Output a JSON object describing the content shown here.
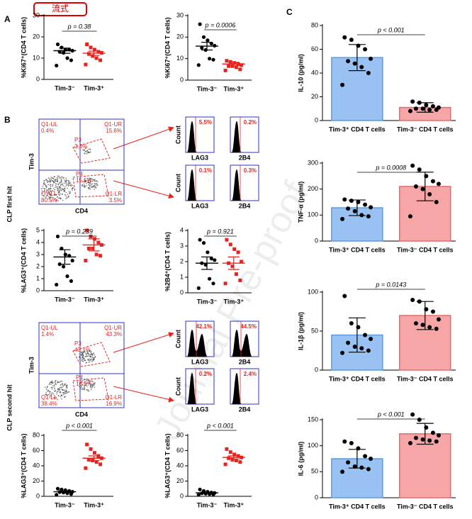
{
  "badge": "流式",
  "panel_labels": [
    "A",
    "B",
    "C"
  ],
  "watermark": "Journal Pre-proof",
  "chart_data": [
    {
      "type": "dot",
      "ylabel": "%Ki67⁺(CD4 T cells)",
      "categories": [
        "Tim-3⁻",
        "Tim-3⁺"
      ],
      "ylim": [
        0,
        30
      ],
      "yticks": [
        0,
        10,
        20,
        30
      ],
      "p": "p = 0.38",
      "groups": [
        {
          "color": "#000000",
          "marker": "circle",
          "values": [
            16.5,
            15,
            14,
            14,
            13.5,
            13,
            12.5,
            10,
            9,
            6.5
          ],
          "mean": 13.5,
          "sem": 1.2
        },
        {
          "color": "#e8231f",
          "marker": "square",
          "values": [
            16.5,
            15,
            14,
            13,
            12.5,
            12,
            11,
            10,
            9,
            7
          ],
          "mean": 12.3,
          "sem": 1
        }
      ]
    },
    {
      "type": "dot",
      "ylabel": "%Ki67⁺(CD4 T cells)",
      "categories": [
        "Tim-3⁻",
        "Tim-3⁺"
      ],
      "ylim": [
        0,
        30
      ],
      "yticks": [
        0,
        10,
        20,
        30
      ],
      "p": "p = 0.0006",
      "groups": [
        {
          "color": "#000000",
          "marker": "circle",
          "values": [
            26,
            20,
            18.5,
            17,
            16,
            15,
            14,
            10,
            9.5,
            7
          ],
          "mean": 15.8,
          "sem": 1.8
        },
        {
          "color": "#e8231f",
          "marker": "square",
          "values": [
            9,
            8.5,
            8,
            7.5,
            7,
            6.5,
            6.5,
            6,
            5,
            4.5
          ],
          "mean": 7.5,
          "sem": 0.8
        }
      ]
    },
    {
      "type": "dot",
      "ylabel": "%LAG3⁺(CD4 T cells)",
      "categories": [
        "Tim-3⁻",
        "Tim-3⁺"
      ],
      "ylim": [
        0,
        5
      ],
      "yticks": [
        0,
        1,
        2,
        3,
        4,
        5
      ],
      "p": "p = 0.239",
      "groups": [
        {
          "color": "#000000",
          "marker": "circle",
          "values": [
            4.5,
            3.5,
            3,
            2.9,
            2.5,
            2.2,
            2,
            1.2,
            0.8,
            0.5
          ],
          "mean": 2.8,
          "sem": 0.6
        },
        {
          "color": "#e8231f",
          "marker": "square",
          "values": [
            5,
            4.5,
            4.3,
            4,
            3.8,
            3.5,
            3.5,
            3,
            2.9,
            2.5
          ],
          "mean": 3.8,
          "sem": 0.5
        }
      ]
    },
    {
      "type": "dot",
      "ylabel": "%2B4⁺(CD4 T cells)",
      "categories": [
        "Tim-3⁻",
        "Tim-3⁺"
      ],
      "ylim": [
        0,
        4
      ],
      "yticks": [
        0,
        1,
        2,
        3,
        4
      ],
      "p": "p = 0.921",
      "groups": [
        {
          "color": "#000000",
          "marker": "circle",
          "values": [
            3.4,
            3.2,
            2.6,
            2.2,
            2.1,
            1.9,
            1.8,
            0.9,
            0.6,
            0.3
          ],
          "mean": 1.9,
          "sem": 0.4
        },
        {
          "color": "#e8231f",
          "marker": "square",
          "values": [
            3.4,
            3.1,
            2.8,
            2.6,
            2,
            1.9,
            1.7,
            1.2,
            0.8,
            0.6
          ],
          "mean": 1.9,
          "sem": 0.4
        }
      ]
    },
    {
      "type": "dot",
      "ylabel": "%LAG3⁺(CD4 T cells)",
      "categories": [
        "Tim-3⁻",
        "Tim-3⁺"
      ],
      "ylim": [
        0,
        80
      ],
      "yticks": [
        0,
        20,
        40,
        60,
        80
      ],
      "p": "p < 0.001",
      "groups": [
        {
          "color": "#000000",
          "marker": "circle",
          "values": [
            10,
            9,
            8,
            7,
            6,
            5.5,
            5,
            4,
            3,
            2
          ],
          "mean": 6,
          "sem": 1
        },
        {
          "color": "#e8231f",
          "marker": "square",
          "values": [
            68,
            62,
            57,
            53,
            50,
            48,
            47,
            45,
            42,
            37
          ],
          "mean": 50,
          "sem": 3
        }
      ]
    },
    {
      "type": "dot",
      "ylabel": "%LAG3⁺(CD4 T cells)",
      "categories": [
        "Tim-3⁻",
        "Tim-3⁺"
      ],
      "ylim": [
        0,
        80
      ],
      "yticks": [
        0,
        20,
        40,
        60,
        80
      ],
      "p": "p < 0.001",
      "groups": [
        {
          "color": "#000000",
          "marker": "circle",
          "values": [
            9,
            7,
            6,
            5,
            4.5,
            4,
            3.5,
            3,
            2.5,
            2
          ],
          "mean": 4.6,
          "sem": 0.8
        },
        {
          "color": "#e8231f",
          "marker": "square",
          "values": [
            62,
            58,
            55,
            53,
            51,
            50,
            48,
            47,
            45,
            42
          ],
          "mean": 51,
          "sem": 2
        }
      ]
    },
    {
      "type": "bar",
      "ylabel": "IL-10 (pg/ml)",
      "categories": [
        "Tim-3⁺ CD4 T cells",
        "Tim-3⁻ CD4 T cells"
      ],
      "ylim": [
        0,
        80
      ],
      "yticks": [
        0,
        20,
        40,
        60,
        80
      ],
      "p": "p < 0.001",
      "colors": [
        "#99c2f2",
        "#f6a6a6"
      ],
      "values": [
        53,
        11
      ],
      "errors": [
        11,
        4
      ],
      "points": [
        [
          70,
          68,
          63,
          60,
          52,
          50,
          48,
          45,
          40,
          30
        ],
        [
          16,
          15,
          13,
          12,
          11,
          10,
          10,
          9,
          9,
          8
        ]
      ]
    },
    {
      "type": "bar",
      "ylabel": "TNF-α (pg/ml)",
      "categories": [
        "Tim-3⁺ CD4 T cells",
        "Tim-3⁻ CD4 T cells"
      ],
      "ylim": [
        0,
        300
      ],
      "yticks": [
        0,
        100,
        200,
        300
      ],
      "p": "p = 0.0008",
      "colors": [
        "#99c2f2",
        "#f6a6a6"
      ],
      "values": [
        128,
        210
      ],
      "errors": [
        30,
        55
      ],
      "points": [
        [
          160,
          155,
          150,
          140,
          130,
          125,
          115,
          100,
          95,
          85
        ],
        [
          290,
          275,
          250,
          230,
          220,
          210,
          200,
          180,
          150,
          95
        ]
      ]
    },
    {
      "type": "bar",
      "ylabel": "IL-1β (pg/ml)",
      "categories": [
        "Tim-3⁺ CD4 T cells",
        "Tim-3⁻ CD4 T cells"
      ],
      "ylim": [
        0,
        100
      ],
      "yticks": [
        0,
        50,
        100
      ],
      "p": "p = 0.0143",
      "colors": [
        "#99c2f2",
        "#f6a6a6"
      ],
      "values": [
        45,
        70
      ],
      "errors": [
        22,
        18
      ],
      "points": [
        [
          95,
          60,
          55,
          45,
          40,
          35,
          30,
          28,
          25,
          22
        ],
        [
          90,
          88,
          78,
          75,
          65,
          60,
          58,
          55,
          53
        ]
      ]
    },
    {
      "type": "bar",
      "ylabel": "IL-6 (pg/ml)",
      "categories": [
        "Tim-3⁺ CD4 T cells",
        "Tim-3⁻ CD4 T cells"
      ],
      "ylim": [
        0,
        150
      ],
      "yticks": [
        0,
        50,
        100,
        150
      ],
      "p": "p < 0.001",
      "colors": [
        "#99c2f2",
        "#f6a6a6"
      ],
      "values": [
        75,
        123
      ],
      "errors": [
        18,
        20
      ],
      "points": [
        [
          108,
          105,
          95,
          80,
          75,
          68,
          60,
          58,
          55,
          50
        ],
        [
          160,
          150,
          135,
          125,
          120,
          115,
          112,
          110,
          108,
          105
        ]
      ]
    }
  ],
  "flow": [
    {
      "row_label": "CLP first hit",
      "y_label": "Tim-3",
      "x_label": "CD4",
      "gates": [
        [
          "Q1-UL",
          "0.4%"
        ],
        [
          "Q1-UR",
          "15.6%"
        ],
        [
          "P3",
          "3.3%"
        ],
        [
          "P4",
          "15.5%"
        ],
        [
          "Q1-LL",
          "80.5%"
        ],
        [
          "Q1-LR",
          "3.5%"
        ]
      ],
      "hist_rows": [
        {
          "y_label": "Count",
          "x_labels": [
            "LAG3",
            "2B4"
          ],
          "percents": [
            "5.5%",
            "0.2%"
          ]
        },
        {
          "y_label": "Count",
          "x_labels": [
            "LAG3",
            "2B4"
          ],
          "percents": [
            "0.1%",
            "0.3%"
          ]
        }
      ]
    },
    {
      "row_label": "CLP second hit",
      "y_label": "Tim-3",
      "x_label": "CD4",
      "gates": [
        [
          "Q1-UL",
          "1.4%"
        ],
        [
          "Q1-UR",
          "43.3%"
        ],
        [
          "P3",
          "43.1%"
        ],
        [
          "P4",
          "16.6%"
        ],
        [
          "Q1-LL",
          "38.4%"
        ],
        [
          "Q1-LR",
          "16.9%"
        ]
      ],
      "hist_rows": [
        {
          "y_label": "Count",
          "x_labels": [
            "LAG3",
            "2B4"
          ],
          "percents": [
            "42.1%",
            "44.5%"
          ]
        },
        {
          "y_label": "Count",
          "x_labels": [
            "LAG3",
            "2B4"
          ],
          "percents": [
            "0.2%",
            "2.4%"
          ]
        }
      ]
    }
  ]
}
